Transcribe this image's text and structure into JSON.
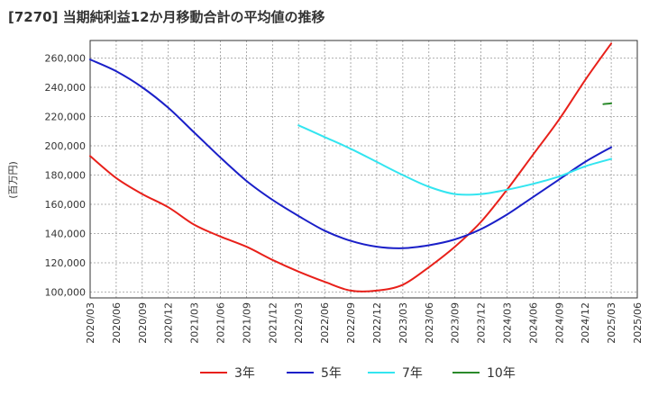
{
  "chart_data": {
    "type": "line",
    "title": "[7270]  当期純利益12か月移動合計の平均値の推移",
    "ylabel": "(百万円)",
    "xlabel": "",
    "ylim": [
      96000,
      272000
    ],
    "yticks": [
      100000,
      120000,
      140000,
      160000,
      180000,
      200000,
      220000,
      240000,
      260000
    ],
    "ytick_labels": [
      "100,000",
      "120,000",
      "140,000",
      "160,000",
      "180,000",
      "200,000",
      "220,000",
      "240,000",
      "260,000"
    ],
    "x_categories": [
      "2020/03",
      "2020/06",
      "2020/09",
      "2020/12",
      "2021/03",
      "2021/06",
      "2021/09",
      "2021/12",
      "2022/03",
      "2022/06",
      "2022/09",
      "2022/12",
      "2023/03",
      "2023/06",
      "2023/09",
      "2023/12",
      "2024/03",
      "2024/06",
      "2024/09",
      "2024/12",
      "2025/03",
      "2025/06"
    ],
    "grid": true,
    "legend_position": "bottom",
    "series": [
      {
        "name": "3年",
        "color": "#e8201a",
        "values": [
          193000,
          178000,
          167000,
          158000,
          146000,
          138000,
          131000,
          122000,
          114000,
          107000,
          101000,
          101000,
          105000,
          117000,
          131000,
          148000,
          170000,
          194000,
          218000,
          245000,
          270000,
          null
        ]
      },
      {
        "name": "5年",
        "color": "#1a1fc8",
        "values": [
          259000,
          251000,
          240000,
          226000,
          209000,
          192000,
          176000,
          163000,
          152000,
          142000,
          135000,
          131000,
          130000,
          132000,
          136000,
          143000,
          153000,
          165000,
          177000,
          189000,
          199000,
          null
        ]
      },
      {
        "name": "7年",
        "color": "#33e5f0",
        "values": [
          null,
          null,
          null,
          null,
          null,
          null,
          null,
          null,
          214000,
          206000,
          198000,
          189000,
          180000,
          172000,
          167000,
          167000,
          170000,
          174000,
          179000,
          186000,
          191000,
          null
        ]
      },
      {
        "name": "10年",
        "color": "#2a8a2a",
        "values": [
          null,
          null,
          null,
          null,
          null,
          null,
          null,
          null,
          null,
          null,
          null,
          null,
          null,
          null,
          null,
          null,
          null,
          null,
          null,
          null,
          229000,
          null
        ],
        "segment": [
          [
            19.7,
            228500
          ],
          [
            20,
            229000
          ]
        ]
      }
    ]
  }
}
